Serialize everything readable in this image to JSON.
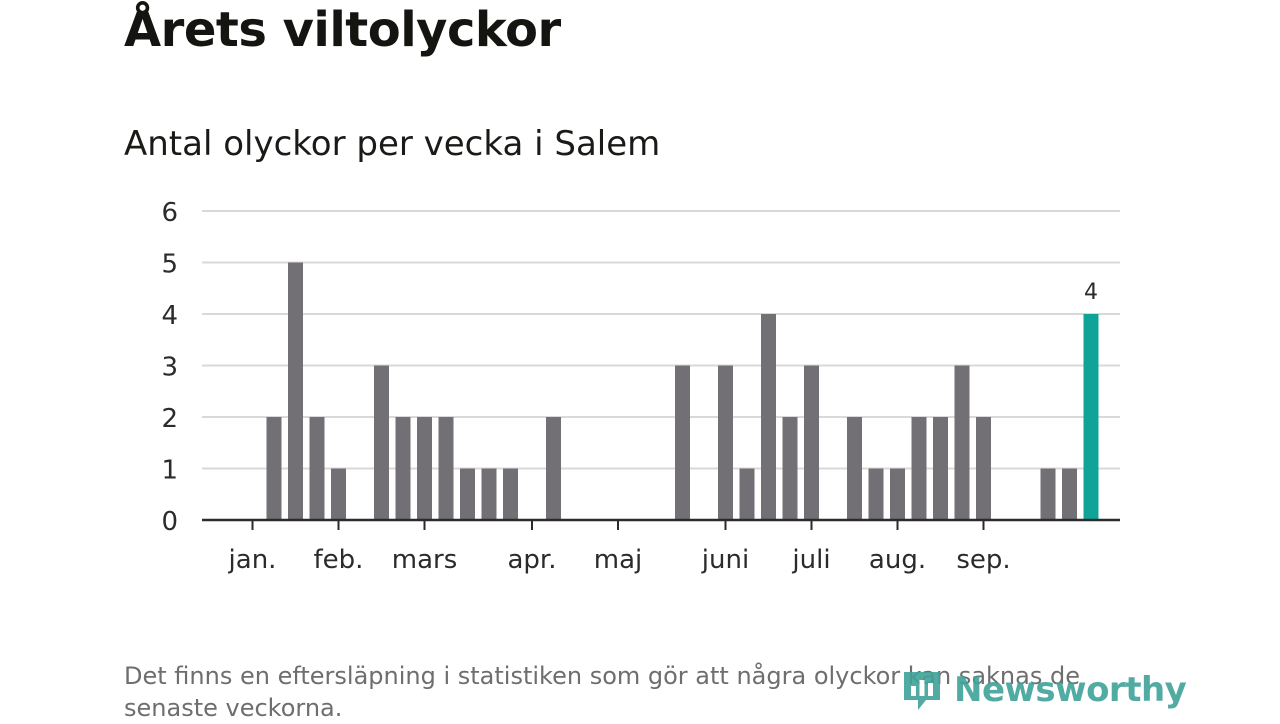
{
  "header": {
    "title": "Årets viltolyckor",
    "subtitle": "Antal olyckor per vecka i Salem"
  },
  "footer": {
    "note": "Det finns en eftersläpning i statistiken som gör att några olyckor kan saknas de senaste veckorna.",
    "logo_text": "Newsworthy",
    "logo_icon": "newsworthy-logo-icon"
  },
  "colors": {
    "bar": "#727075",
    "highlight": "#0fa497",
    "grid": "#d9d9d9",
    "axis": "#2b2b2b",
    "logo": "#3fa39a"
  },
  "chart_data": {
    "type": "bar",
    "title": "Antal olyckor per vecka i Salem",
    "xlabel": "",
    "ylabel": "",
    "ylim": [
      0,
      6
    ],
    "yticks": [
      0,
      1,
      2,
      3,
      4,
      5,
      6
    ],
    "grid": true,
    "weeks": [
      1,
      2,
      3,
      4,
      5,
      6,
      7,
      8,
      9,
      10,
      11,
      12,
      13,
      14,
      15,
      16,
      17,
      18,
      19,
      20,
      21,
      22,
      23,
      24,
      25,
      26,
      27,
      28,
      29,
      30,
      31,
      32,
      33,
      34,
      35,
      36,
      37,
      38,
      39,
      40
    ],
    "values": [
      0,
      2,
      5,
      2,
      1,
      0,
      3,
      2,
      2,
      2,
      1,
      1,
      1,
      0,
      2,
      0,
      0,
      0,
      0,
      0,
      3,
      0,
      3,
      1,
      4,
      2,
      3,
      0,
      2,
      1,
      1,
      2,
      2,
      3,
      2,
      0,
      0,
      1,
      1,
      4
    ],
    "highlight_index": 39,
    "highlight_label": "4",
    "month_labels": [
      {
        "label": "jan.",
        "week": 1
      },
      {
        "label": "feb.",
        "week": 5
      },
      {
        "label": "mars",
        "week": 9
      },
      {
        "label": "apr.",
        "week": 14
      },
      {
        "label": "maj",
        "week": 18
      },
      {
        "label": "juni",
        "week": 23
      },
      {
        "label": "juli",
        "week": 27
      },
      {
        "label": "aug.",
        "week": 31
      },
      {
        "label": "sep.",
        "week": 35
      }
    ]
  }
}
